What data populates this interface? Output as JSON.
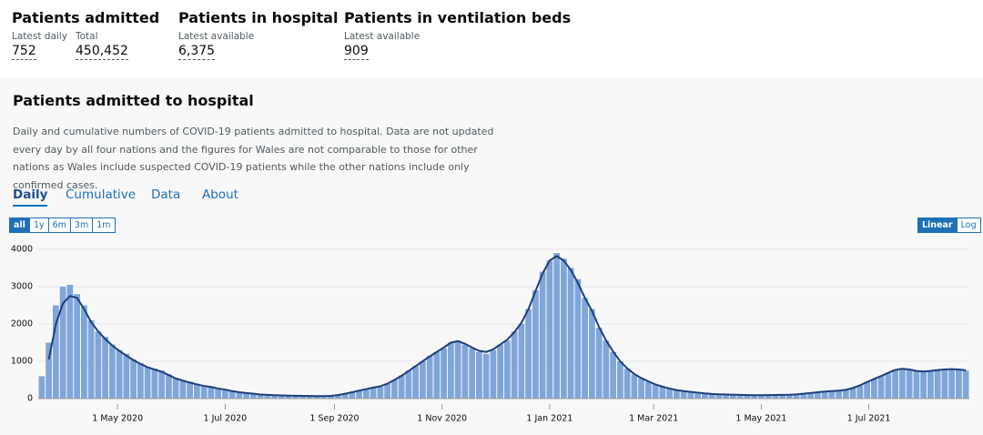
{
  "headlines": [
    {
      "title": "Patients admitted",
      "items": [
        {
          "label": "Latest daily",
          "value": "752"
        },
        {
          "label": "Total",
          "value": "450,452"
        }
      ]
    },
    {
      "title": "Patients in hospital",
      "items": [
        {
          "label": "Latest available",
          "value": "6,375"
        }
      ]
    },
    {
      "title": "Patients in ventilation beds",
      "items": [
        {
          "label": "Latest available",
          "value": "909"
        }
      ]
    }
  ],
  "card": {
    "title": "Patients admitted to hospital",
    "description": "Daily and cumulative numbers of COVID-19 patients admitted to hospital. Data are not updated every day by all four nations and the figures for Wales are not comparable to those for other nations as Wales include suspected COVID-19 patients while the other nations include only confirmed cases.",
    "tabs": [
      "Daily",
      "Cumulative",
      "Data",
      "About"
    ],
    "range_buttons": [
      "all",
      "1y",
      "6m",
      "3m",
      "1m"
    ],
    "scale_buttons": [
      "Linear",
      "Log"
    ]
  },
  "chart_data": {
    "type": "bar",
    "categories": [
      null,
      null,
      null,
      null,
      null,
      null,
      null,
      null,
      null,
      null,
      null,
      null,
      null,
      null,
      null,
      null,
      null,
      null,
      null,
      null,
      null,
      null,
      null,
      null,
      null,
      null,
      null,
      null,
      null,
      null,
      null,
      null,
      null,
      null,
      null,
      null,
      null,
      null,
      null,
      null,
      null,
      null,
      null,
      null,
      null,
      null,
      null,
      null,
      null,
      null,
      null,
      null,
      null,
      null,
      null,
      null,
      null,
      null,
      null,
      null,
      null,
      null,
      null,
      null,
      null,
      null,
      null,
      null,
      null,
      null,
      null,
      null,
      null,
      null,
      null,
      null,
      null,
      null,
      null,
      null,
      null,
      null,
      null,
      null,
      null,
      null,
      null,
      null,
      null,
      null,
      null,
      null,
      null,
      null,
      null,
      null,
      null,
      null,
      null,
      null,
      null,
      null,
      null,
      null,
      null,
      null,
      null,
      null,
      null,
      null,
      null,
      null,
      null,
      null,
      null,
      null,
      null,
      null,
      null,
      null,
      null,
      null,
      null,
      null,
      null,
      null,
      null,
      null,
      null,
      null,
      null,
      null
    ],
    "series": [
      {
        "color": "#7fa6d9",
        "values": [
          600,
          1500,
          2500,
          3000,
          3050,
          2800,
          2500,
          2100,
          1800,
          1650,
          1450,
          1300,
          1200,
          1050,
          950,
          850,
          800,
          750,
          650,
          550,
          500,
          450,
          400,
          350,
          330,
          280,
          250,
          200,
          170,
          150,
          130,
          110,
          100,
          90,
          85,
          80,
          75,
          70,
          70,
          65,
          65,
          70,
          90,
          130,
          170,
          220,
          260,
          300,
          320,
          400,
          500,
          620,
          750,
          880,
          1000,
          1150,
          1250,
          1350,
          1500,
          1550,
          1450,
          1350,
          1250,
          1200,
          1300,
          1450,
          1550,
          1800,
          2000,
          2400,
          2900,
          3400,
          3700,
          3900,
          3750,
          3500,
          3200,
          2700,
          2400,
          1900,
          1550,
          1250,
          1000,
          800,
          650,
          550,
          450,
          380,
          320,
          270,
          230,
          200,
          180,
          160,
          140,
          125,
          115,
          110,
          105,
          100,
          95,
          90,
          90,
          95,
          100,
          100,
          100,
          110,
          130,
          150,
          170,
          190,
          200,
          210,
          230,
          280,
          350,
          450,
          520,
          600,
          680,
          780,
          820,
          780,
          730,
          720,
          730,
          760,
          780,
          800,
          780,
          750
        ]
      },
      {
        "type": "line",
        "color": "#1d3f7a",
        "values": [
          null,
          1050,
          2000,
          2550,
          2750,
          2700,
          2400,
          2050,
          1800,
          1600,
          1420,
          1280,
          1150,
          1030,
          930,
          840,
          780,
          720,
          630,
          540,
          480,
          430,
          380,
          340,
          310,
          270,
          240,
          200,
          170,
          150,
          130,
          110,
          100,
          90,
          85,
          80,
          75,
          72,
          70,
          68,
          68,
          72,
          95,
          130,
          170,
          215,
          255,
          295,
          330,
          400,
          500,
          610,
          740,
          870,
          1000,
          1130,
          1250,
          1370,
          1500,
          1540,
          1470,
          1370,
          1280,
          1250,
          1320,
          1450,
          1580,
          1780,
          2030,
          2400,
          2880,
          3350,
          3700,
          3820,
          3700,
          3450,
          3100,
          2700,
          2350,
          1920,
          1560,
          1260,
          1000,
          810,
          660,
          550,
          460,
          380,
          320,
          270,
          230,
          200,
          180,
          160,
          140,
          125,
          115,
          110,
          105,
          100,
          96,
          92,
          92,
          95,
          98,
          100,
          103,
          112,
          130,
          150,
          170,
          188,
          200,
          212,
          235,
          285,
          355,
          445,
          525,
          605,
          690,
          770,
          800,
          780,
          740,
          725,
          740,
          765,
          780,
          790,
          780,
          760
        ]
      }
    ],
    "xlim": [
      -0.5,
      131.5
    ],
    "xticks": [
      {
        "value": 10.75,
        "label": "1 May 2020"
      },
      {
        "value": 26,
        "label": "1 Jul 2020"
      },
      {
        "value": 41.5,
        "label": "1 Sep 2020"
      },
      {
        "value": 56.75,
        "label": "1 Nov 2020"
      },
      {
        "value": 72,
        "label": "1 Jan 2021"
      },
      {
        "value": 86.75,
        "label": "1 Mar 2021"
      },
      {
        "value": 102,
        "label": "1 May 2021"
      },
      {
        "value": 117.25,
        "label": "1 Jul 2021"
      }
    ],
    "ylim": [
      0,
      4200
    ],
    "yticks": [
      0,
      1000,
      2000,
      3000,
      4000
    ],
    "grid": true
  }
}
